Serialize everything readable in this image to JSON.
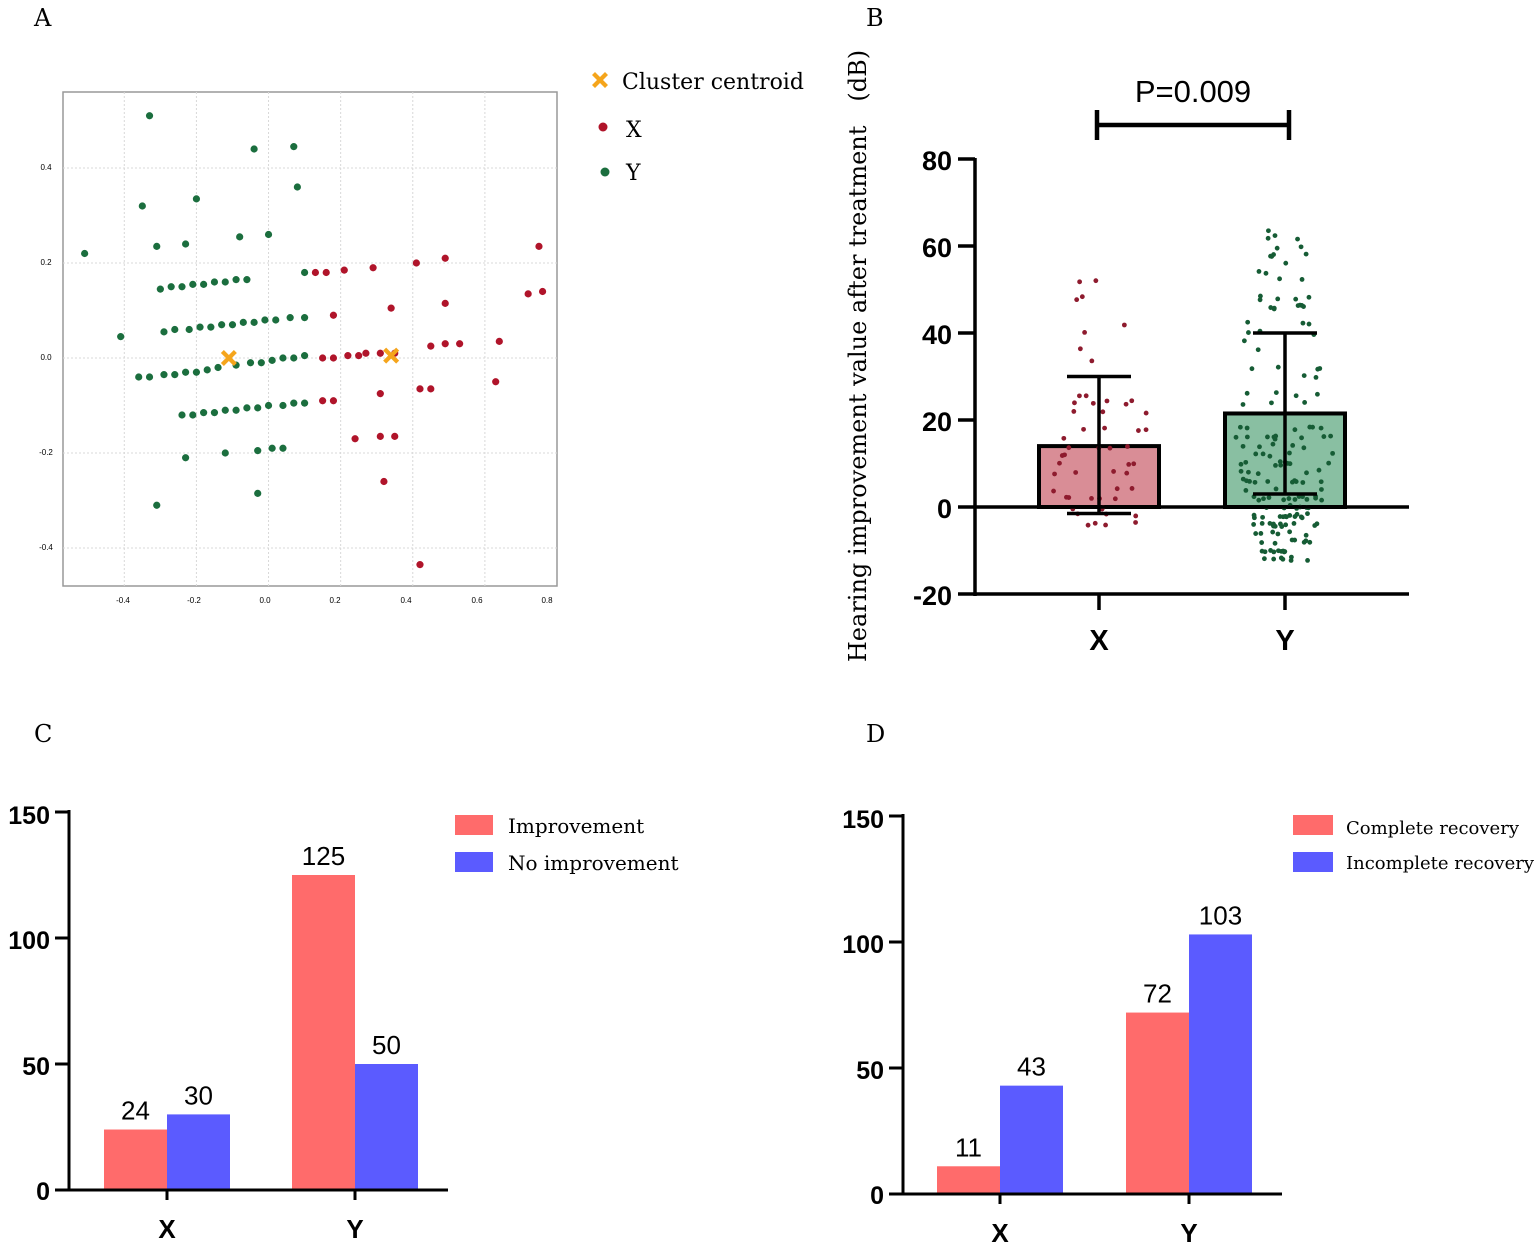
{
  "panels": [
    {
      "letter": "A",
      "chart_data": {
        "type": "scatter",
        "title": "",
        "xlabel": "",
        "ylabel": "",
        "xlim": [
          -0.57,
          0.8
        ],
        "ylim": [
          -0.48,
          0.56
        ],
        "grid": true,
        "xticks": [
          "-0.4",
          "-0.2",
          "0.0",
          "0.2",
          "0.4",
          "0.6",
          "0.8"
        ],
        "yticks": [
          "0.4",
          "0.2",
          "0.0",
          "-0.2",
          "-0.4"
        ],
        "legend": {
          "position": "top-right-outside",
          "entries": [
            "Cluster centroid",
            "X",
            "Y"
          ]
        },
        "colors": {
          "X": "#b0142a",
          "Y": "#1b6e3e",
          "centroid": "#f5a51c"
        },
        "centroids": [
          [
            -0.11,
            0.0
          ],
          [
            0.34,
            0.005
          ]
        ],
        "series": [
          {
            "name": "X",
            "points": [
              [
                0.13,
                0.18
              ],
              [
                0.16,
                0.18
              ],
              [
                0.21,
                0.185
              ],
              [
                0.29,
                0.19
              ],
              [
                0.41,
                0.2
              ],
              [
                0.49,
                0.21
              ],
              [
                0.75,
                0.235
              ],
              [
                0.72,
                0.135
              ],
              [
                0.76,
                0.14
              ],
              [
                0.34,
                0.105
              ],
              [
                0.18,
                0.09
              ],
              [
                0.49,
                0.115
              ],
              [
                0.15,
                0.0
              ],
              [
                0.18,
                0.0
              ],
              [
                0.22,
                0.005
              ],
              [
                0.25,
                0.005
              ],
              [
                0.27,
                0.01
              ],
              [
                0.31,
                0.01
              ],
              [
                0.35,
                0.01
              ],
              [
                0.45,
                0.025
              ],
              [
                0.49,
                0.03
              ],
              [
                0.53,
                0.03
              ],
              [
                0.64,
                0.035
              ],
              [
                0.63,
                -0.05
              ],
              [
                0.42,
                -0.065
              ],
              [
                0.45,
                -0.065
              ],
              [
                0.31,
                -0.075
              ],
              [
                0.15,
                -0.09
              ],
              [
                0.18,
                -0.09
              ],
              [
                0.24,
                -0.17
              ],
              [
                0.31,
                -0.165
              ],
              [
                0.35,
                -0.165
              ],
              [
                0.32,
                -0.26
              ],
              [
                0.42,
                -0.435
              ]
            ]
          },
          {
            "name": "Y",
            "points": [
              [
                -0.33,
                0.51
              ],
              [
                -0.04,
                0.44
              ],
              [
                0.07,
                0.445
              ],
              [
                0.08,
                0.36
              ],
              [
                -0.2,
                0.335
              ],
              [
                -0.35,
                0.32
              ],
              [
                -0.51,
                0.22
              ],
              [
                -0.31,
                0.235
              ],
              [
                -0.23,
                0.24
              ],
              [
                -0.08,
                0.255
              ],
              [
                0.0,
                0.26
              ],
              [
                0.1,
                0.18
              ],
              [
                -0.3,
                0.145
              ],
              [
                -0.27,
                0.15
              ],
              [
                -0.24,
                0.15
              ],
              [
                -0.21,
                0.155
              ],
              [
                -0.18,
                0.155
              ],
              [
                -0.15,
                0.16
              ],
              [
                -0.12,
                0.16
              ],
              [
                -0.09,
                0.165
              ],
              [
                -0.06,
                0.165
              ],
              [
                -0.29,
                0.055
              ],
              [
                -0.26,
                0.06
              ],
              [
                -0.22,
                0.06
              ],
              [
                -0.19,
                0.065
              ],
              [
                -0.16,
                0.065
              ],
              [
                -0.13,
                0.07
              ],
              [
                -0.1,
                0.07
              ],
              [
                -0.07,
                0.075
              ],
              [
                -0.04,
                0.075
              ],
              [
                -0.01,
                0.08
              ],
              [
                0.02,
                0.08
              ],
              [
                0.06,
                0.085
              ],
              [
                0.1,
                0.085
              ],
              [
                -0.41,
                0.045
              ],
              [
                -0.36,
                -0.04
              ],
              [
                -0.33,
                -0.04
              ],
              [
                -0.29,
                -0.035
              ],
              [
                -0.26,
                -0.035
              ],
              [
                -0.23,
                -0.03
              ],
              [
                -0.2,
                -0.03
              ],
              [
                -0.17,
                -0.025
              ],
              [
                -0.14,
                -0.02
              ],
              [
                -0.09,
                -0.015
              ],
              [
                -0.05,
                -0.01
              ],
              [
                -0.02,
                -0.01
              ],
              [
                0.01,
                -0.005
              ],
              [
                0.04,
                0.0
              ],
              [
                0.07,
                0.0
              ],
              [
                0.1,
                0.005
              ],
              [
                -0.24,
                -0.12
              ],
              [
                -0.21,
                -0.12
              ],
              [
                -0.18,
                -0.115
              ],
              [
                -0.15,
                -0.115
              ],
              [
                -0.12,
                -0.11
              ],
              [
                -0.09,
                -0.11
              ],
              [
                -0.06,
                -0.105
              ],
              [
                -0.03,
                -0.105
              ],
              [
                0.0,
                -0.1
              ],
              [
                0.04,
                -0.1
              ],
              [
                0.07,
                -0.095
              ],
              [
                0.1,
                -0.095
              ],
              [
                -0.23,
                -0.21
              ],
              [
                -0.12,
                -0.2
              ],
              [
                -0.03,
                -0.195
              ],
              [
                0.01,
                -0.19
              ],
              [
                0.04,
                -0.19
              ],
              [
                -0.31,
                -0.31
              ],
              [
                -0.03,
                -0.285
              ]
            ]
          }
        ]
      }
    },
    {
      "letter": "B",
      "chart_data": {
        "type": "bar",
        "title": "",
        "xlabel": "",
        "ylabel": "Hearing improvement value after treatment　(dB)",
        "categories": [
          "X",
          "Y"
        ],
        "means": [
          14,
          21.5
        ],
        "sd_low": [
          -1.5,
          3
        ],
        "sd_high": [
          30,
          40
        ],
        "ylim": [
          -20,
          80
        ],
        "yticks": [
          "80",
          "60",
          "40",
          "20",
          "0",
          "-20"
        ],
        "annotation": "P=0.009",
        "colors": {
          "X_fill": "#d98d96",
          "Y_fill": "#89bfa2",
          "X_dots": "#8e1b2e",
          "Y_dots": "#165c35"
        }
      }
    },
    {
      "letter": "C",
      "chart_data": {
        "type": "bar",
        "title": "",
        "xlabel": "",
        "ylabel": "",
        "categories": [
          "X",
          "Y"
        ],
        "series": [
          {
            "name": "Improvement",
            "values": [
              24,
              125
            ],
            "color": "#ff6b6b"
          },
          {
            "name": "No improvement",
            "values": [
              30,
              50
            ],
            "color": "#5b5bff"
          }
        ],
        "ylim": [
          0,
          150
        ],
        "yticks": [
          "150",
          "100",
          "50",
          "0"
        ],
        "legend": "top-right"
      }
    },
    {
      "letter": "D",
      "chart_data": {
        "type": "bar",
        "title": "",
        "xlabel": "",
        "ylabel": "",
        "categories": [
          "X",
          "Y"
        ],
        "series": [
          {
            "name": "Complete recovery",
            "values": [
              11,
              72
            ],
            "color": "#ff6b6b"
          },
          {
            "name": "Incomplete recovery",
            "values": [
              43,
              103
            ],
            "color": "#5b5bff"
          }
        ],
        "ylim": [
          0,
          150
        ],
        "yticks": [
          "150",
          "100",
          "50",
          "0"
        ],
        "legend": "top-right"
      }
    }
  ]
}
